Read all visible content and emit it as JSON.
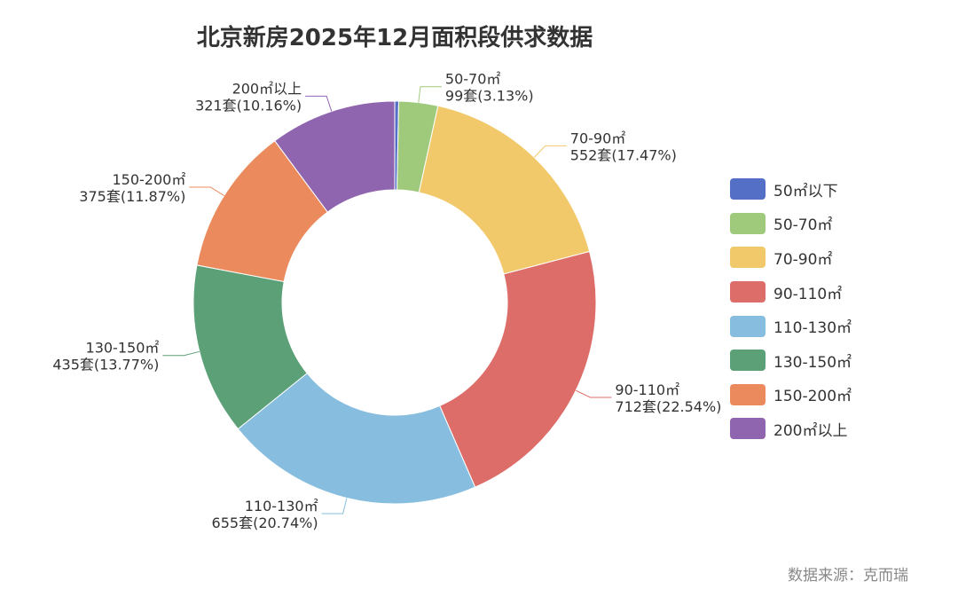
{
  "chart_data": {
    "type": "pie",
    "variant": "donut",
    "title": "北京新房2025年12月面积段供求数据",
    "source": "数据来源：克而瑞",
    "legend_position": "right",
    "slices": [
      {
        "name": "50㎡以下",
        "value": 10,
        "label": "",
        "color": "#5470c6"
      },
      {
        "name": "50-70㎡",
        "value": 99,
        "label": "99套(3.13%)",
        "color": "#9fca7b"
      },
      {
        "name": "70-90㎡",
        "value": 552,
        "label": "552套(17.47%)",
        "color": "#f1c96b"
      },
      {
        "name": "90-110㎡",
        "value": 712,
        "label": "712套(22.54%)",
        "color": "#dd6d69"
      },
      {
        "name": "110-130㎡",
        "value": 655,
        "label": "655套(20.74%)",
        "color": "#87bedf"
      },
      {
        "name": "130-150㎡",
        "value": 435,
        "label": "435套(13.77%)",
        "color": "#5ba077"
      },
      {
        "name": "150-200㎡",
        "value": 375,
        "label": "375套(11.87%)",
        "color": "#eb8b5d"
      },
      {
        "name": "200㎡以上",
        "value": 321,
        "label": "321套(10.16%)",
        "color": "#9065b0"
      }
    ]
  }
}
